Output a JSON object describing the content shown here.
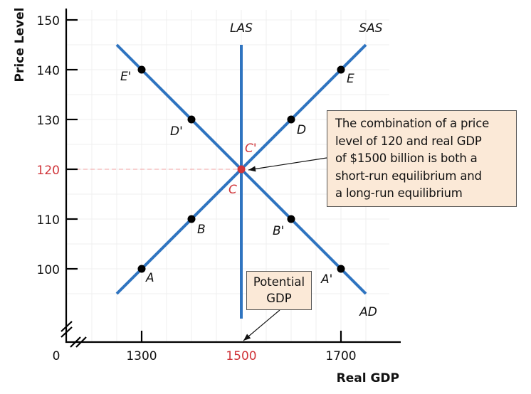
{
  "chart_data": {
    "type": "line",
    "title": "",
    "xlabel": "Real GDP",
    "ylabel": "Price Level",
    "xlim": [
      1100,
      1800
    ],
    "ylim": [
      90,
      150
    ],
    "axis_break": true,
    "origin_label": "0",
    "grid": true,
    "x_ticks": [
      {
        "value": 1300,
        "label": "1300",
        "highlight": false
      },
      {
        "value": 1500,
        "label": "1500",
        "highlight": true
      },
      {
        "value": 1700,
        "label": "1700",
        "highlight": false
      }
    ],
    "y_ticks": [
      {
        "value": 100,
        "label": "100",
        "highlight": false
      },
      {
        "value": 110,
        "label": "110",
        "highlight": false
      },
      {
        "value": 120,
        "label": "120",
        "highlight": true
      },
      {
        "value": 130,
        "label": "130",
        "highlight": false
      },
      {
        "value": 140,
        "label": "140",
        "highlight": false
      },
      {
        "value": 150,
        "label": "150",
        "highlight": false
      }
    ],
    "series": [
      {
        "name": "SAS",
        "label": "SAS",
        "line": [
          [
            1250,
            95
          ],
          [
            1750,
            145
          ]
        ],
        "label_pos": [
          1760,
          148
        ],
        "points": [
          {
            "label": "A",
            "x": 1300,
            "y": 100,
            "label_dx": 6,
            "label_dy": 18
          },
          {
            "label": "B",
            "x": 1400,
            "y": 110,
            "label_dx": 8,
            "label_dy": 20
          },
          {
            "label": "C",
            "x": 1500,
            "y": 120,
            "label_dx": -18,
            "label_dy": 34,
            "special": true
          },
          {
            "label": "D",
            "x": 1600,
            "y": 130,
            "label_dx": 8,
            "label_dy": 20
          },
          {
            "label": "E",
            "x": 1700,
            "y": 140,
            "label_dx": 8,
            "label_dy": 18
          }
        ]
      },
      {
        "name": "AD",
        "label": "AD",
        "line": [
          [
            1250,
            145
          ],
          [
            1750,
            95
          ]
        ],
        "label_pos": [
          1755,
          91
        ],
        "points": [
          {
            "label": "A'",
            "x": 1700,
            "y": 100,
            "label_dx": -28,
            "label_dy": 20
          },
          {
            "label": "B'",
            "x": 1600,
            "y": 110,
            "label_dx": -26,
            "label_dy": 22
          },
          {
            "label": "C'",
            "x": 1500,
            "y": 120,
            "label_dx": 5,
            "label_dy": -24,
            "special": true
          },
          {
            "label": "D'",
            "x": 1400,
            "y": 130,
            "label_dx": -30,
            "label_dy": 22
          },
          {
            "label": "E'",
            "x": 1300,
            "y": 140,
            "label_dx": -30,
            "label_dy": 15
          }
        ]
      },
      {
        "name": "LAS",
        "label": "LAS",
        "line": [
          [
            1500,
            145
          ],
          [
            1500,
            90
          ]
        ],
        "label_pos": [
          1500,
          148
        ],
        "points": []
      }
    ],
    "equilibrium": {
      "x": 1500,
      "y": 120
    },
    "annotations": [
      {
        "id": "equilibrium-note",
        "lines": [
          "The combination of a price",
          "level of 120 and real GDP",
          "of $1500 billion is both a",
          "short-run equilibrium and",
          "a long-run equilibrium"
        ],
        "points_to": {
          "x": 1500,
          "y": 120
        }
      },
      {
        "id": "potential-gdp-note",
        "lines": [
          "Potential",
          "GDP"
        ],
        "points_to": {
          "x": 1500,
          "y": 90
        }
      }
    ]
  },
  "colors": {
    "curve": "#2f74c0",
    "highlight": "#d0353a",
    "point": "#000000",
    "axis": "#000000",
    "grid": "#efefef",
    "guide": "#f0a0a0",
    "callout_bg": "#fbe9d7",
    "callout_border": "#555555"
  }
}
